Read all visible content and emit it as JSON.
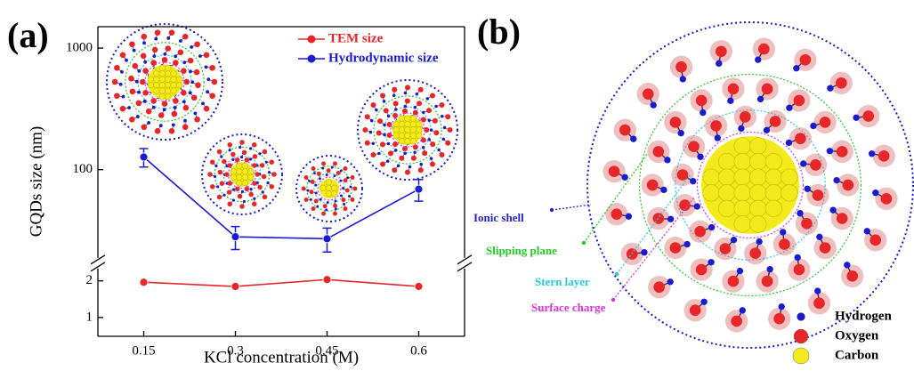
{
  "panels": {
    "a": "(a)",
    "b": "(b)"
  },
  "chart_data": {
    "type": "line",
    "x": [
      0.15,
      0.3,
      0.45,
      0.6
    ],
    "xlim": [
      0.075,
      0.675
    ],
    "xticks": [
      0.15,
      0.3,
      0.45,
      0.6
    ],
    "yscale": "log",
    "ylim": [
      0.7,
      1500
    ],
    "ybreak": [
      2.8,
      17
    ],
    "yticks": [
      1,
      2,
      100,
      1000
    ],
    "xlabel": "KCl concentration (M)",
    "ylabel": "GQDs size (nm)",
    "legend": "upper center",
    "series": [
      {
        "name": "TEM size",
        "color": "#e8262a",
        "values": [
          1.95,
          1.8,
          2.05,
          1.8
        ]
      },
      {
        "name": "Hydrodynamic size",
        "color": "#1a1ad0",
        "values": [
          127,
          28,
          27,
          69
        ],
        "errors": [
          22,
          6,
          6,
          14
        ]
      }
    ]
  },
  "diagram": {
    "labels": [
      {
        "text": "Ionic shell",
        "color": "#2323c8"
      },
      {
        "text": "Slipping plane",
        "color": "#22cc22"
      },
      {
        "text": "Stern layer",
        "color": "#22ccdd"
      },
      {
        "text": "Surface charge",
        "color": "#dd33dd"
      }
    ],
    "legend": [
      {
        "text": "Hydrogen",
        "color": "#1a1ad0"
      },
      {
        "text": "Oxygen",
        "color": "#e8262a"
      },
      {
        "text": "Carbon",
        "color": "#f2ea1a"
      }
    ]
  }
}
